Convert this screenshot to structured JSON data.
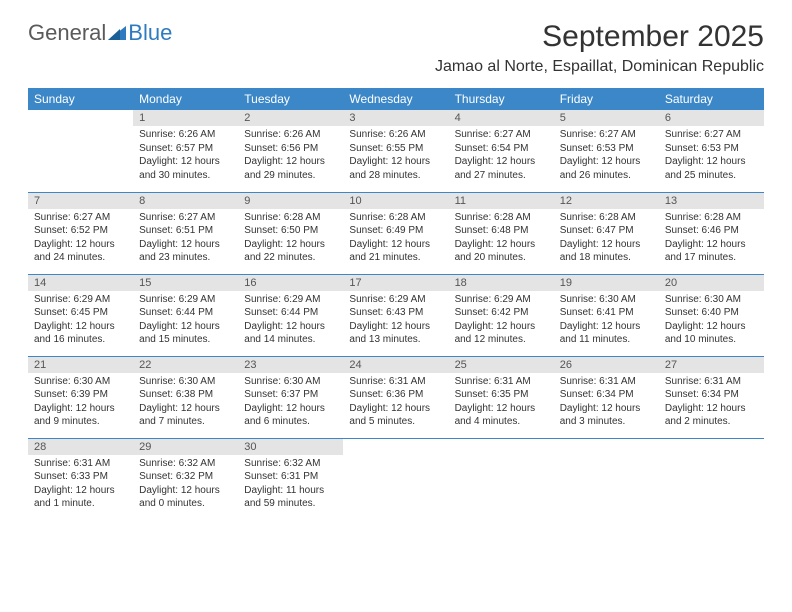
{
  "logo": {
    "text1": "General",
    "text2": "Blue"
  },
  "title": "September 2025",
  "location": "Jamao al Norte, Espaillat, Dominican Republic",
  "colors": {
    "header_bg": "#3b87c8",
    "header_fg": "#ffffff",
    "daynum_bg": "#e4e4e4",
    "daynum_fg": "#555555",
    "text": "#333333",
    "rule": "#3b87c8",
    "logo_gray": "#5a5a5a",
    "logo_blue": "#2f7bbf"
  },
  "weekdays": [
    "Sunday",
    "Monday",
    "Tuesday",
    "Wednesday",
    "Thursday",
    "Friday",
    "Saturday"
  ],
  "weeks": [
    [
      {
        "n": "",
        "sr": "",
        "ss": "",
        "dl": ""
      },
      {
        "n": "1",
        "sr": "Sunrise: 6:26 AM",
        "ss": "Sunset: 6:57 PM",
        "dl": "Daylight: 12 hours and 30 minutes."
      },
      {
        "n": "2",
        "sr": "Sunrise: 6:26 AM",
        "ss": "Sunset: 6:56 PM",
        "dl": "Daylight: 12 hours and 29 minutes."
      },
      {
        "n": "3",
        "sr": "Sunrise: 6:26 AM",
        "ss": "Sunset: 6:55 PM",
        "dl": "Daylight: 12 hours and 28 minutes."
      },
      {
        "n": "4",
        "sr": "Sunrise: 6:27 AM",
        "ss": "Sunset: 6:54 PM",
        "dl": "Daylight: 12 hours and 27 minutes."
      },
      {
        "n": "5",
        "sr": "Sunrise: 6:27 AM",
        "ss": "Sunset: 6:53 PM",
        "dl": "Daylight: 12 hours and 26 minutes."
      },
      {
        "n": "6",
        "sr": "Sunrise: 6:27 AM",
        "ss": "Sunset: 6:53 PM",
        "dl": "Daylight: 12 hours and 25 minutes."
      }
    ],
    [
      {
        "n": "7",
        "sr": "Sunrise: 6:27 AM",
        "ss": "Sunset: 6:52 PM",
        "dl": "Daylight: 12 hours and 24 minutes."
      },
      {
        "n": "8",
        "sr": "Sunrise: 6:27 AM",
        "ss": "Sunset: 6:51 PM",
        "dl": "Daylight: 12 hours and 23 minutes."
      },
      {
        "n": "9",
        "sr": "Sunrise: 6:28 AM",
        "ss": "Sunset: 6:50 PM",
        "dl": "Daylight: 12 hours and 22 minutes."
      },
      {
        "n": "10",
        "sr": "Sunrise: 6:28 AM",
        "ss": "Sunset: 6:49 PM",
        "dl": "Daylight: 12 hours and 21 minutes."
      },
      {
        "n": "11",
        "sr": "Sunrise: 6:28 AM",
        "ss": "Sunset: 6:48 PM",
        "dl": "Daylight: 12 hours and 20 minutes."
      },
      {
        "n": "12",
        "sr": "Sunrise: 6:28 AM",
        "ss": "Sunset: 6:47 PM",
        "dl": "Daylight: 12 hours and 18 minutes."
      },
      {
        "n": "13",
        "sr": "Sunrise: 6:28 AM",
        "ss": "Sunset: 6:46 PM",
        "dl": "Daylight: 12 hours and 17 minutes."
      }
    ],
    [
      {
        "n": "14",
        "sr": "Sunrise: 6:29 AM",
        "ss": "Sunset: 6:45 PM",
        "dl": "Daylight: 12 hours and 16 minutes."
      },
      {
        "n": "15",
        "sr": "Sunrise: 6:29 AM",
        "ss": "Sunset: 6:44 PM",
        "dl": "Daylight: 12 hours and 15 minutes."
      },
      {
        "n": "16",
        "sr": "Sunrise: 6:29 AM",
        "ss": "Sunset: 6:44 PM",
        "dl": "Daylight: 12 hours and 14 minutes."
      },
      {
        "n": "17",
        "sr": "Sunrise: 6:29 AM",
        "ss": "Sunset: 6:43 PM",
        "dl": "Daylight: 12 hours and 13 minutes."
      },
      {
        "n": "18",
        "sr": "Sunrise: 6:29 AM",
        "ss": "Sunset: 6:42 PM",
        "dl": "Daylight: 12 hours and 12 minutes."
      },
      {
        "n": "19",
        "sr": "Sunrise: 6:30 AM",
        "ss": "Sunset: 6:41 PM",
        "dl": "Daylight: 12 hours and 11 minutes."
      },
      {
        "n": "20",
        "sr": "Sunrise: 6:30 AM",
        "ss": "Sunset: 6:40 PM",
        "dl": "Daylight: 12 hours and 10 minutes."
      }
    ],
    [
      {
        "n": "21",
        "sr": "Sunrise: 6:30 AM",
        "ss": "Sunset: 6:39 PM",
        "dl": "Daylight: 12 hours and 9 minutes."
      },
      {
        "n": "22",
        "sr": "Sunrise: 6:30 AM",
        "ss": "Sunset: 6:38 PM",
        "dl": "Daylight: 12 hours and 7 minutes."
      },
      {
        "n": "23",
        "sr": "Sunrise: 6:30 AM",
        "ss": "Sunset: 6:37 PM",
        "dl": "Daylight: 12 hours and 6 minutes."
      },
      {
        "n": "24",
        "sr": "Sunrise: 6:31 AM",
        "ss": "Sunset: 6:36 PM",
        "dl": "Daylight: 12 hours and 5 minutes."
      },
      {
        "n": "25",
        "sr": "Sunrise: 6:31 AM",
        "ss": "Sunset: 6:35 PM",
        "dl": "Daylight: 12 hours and 4 minutes."
      },
      {
        "n": "26",
        "sr": "Sunrise: 6:31 AM",
        "ss": "Sunset: 6:34 PM",
        "dl": "Daylight: 12 hours and 3 minutes."
      },
      {
        "n": "27",
        "sr": "Sunrise: 6:31 AM",
        "ss": "Sunset: 6:34 PM",
        "dl": "Daylight: 12 hours and 2 minutes."
      }
    ],
    [
      {
        "n": "28",
        "sr": "Sunrise: 6:31 AM",
        "ss": "Sunset: 6:33 PM",
        "dl": "Daylight: 12 hours and 1 minute."
      },
      {
        "n": "29",
        "sr": "Sunrise: 6:32 AM",
        "ss": "Sunset: 6:32 PM",
        "dl": "Daylight: 12 hours and 0 minutes."
      },
      {
        "n": "30",
        "sr": "Sunrise: 6:32 AM",
        "ss": "Sunset: 6:31 PM",
        "dl": "Daylight: 11 hours and 59 minutes."
      },
      {
        "n": "",
        "sr": "",
        "ss": "",
        "dl": ""
      },
      {
        "n": "",
        "sr": "",
        "ss": "",
        "dl": ""
      },
      {
        "n": "",
        "sr": "",
        "ss": "",
        "dl": ""
      },
      {
        "n": "",
        "sr": "",
        "ss": "",
        "dl": ""
      }
    ]
  ]
}
